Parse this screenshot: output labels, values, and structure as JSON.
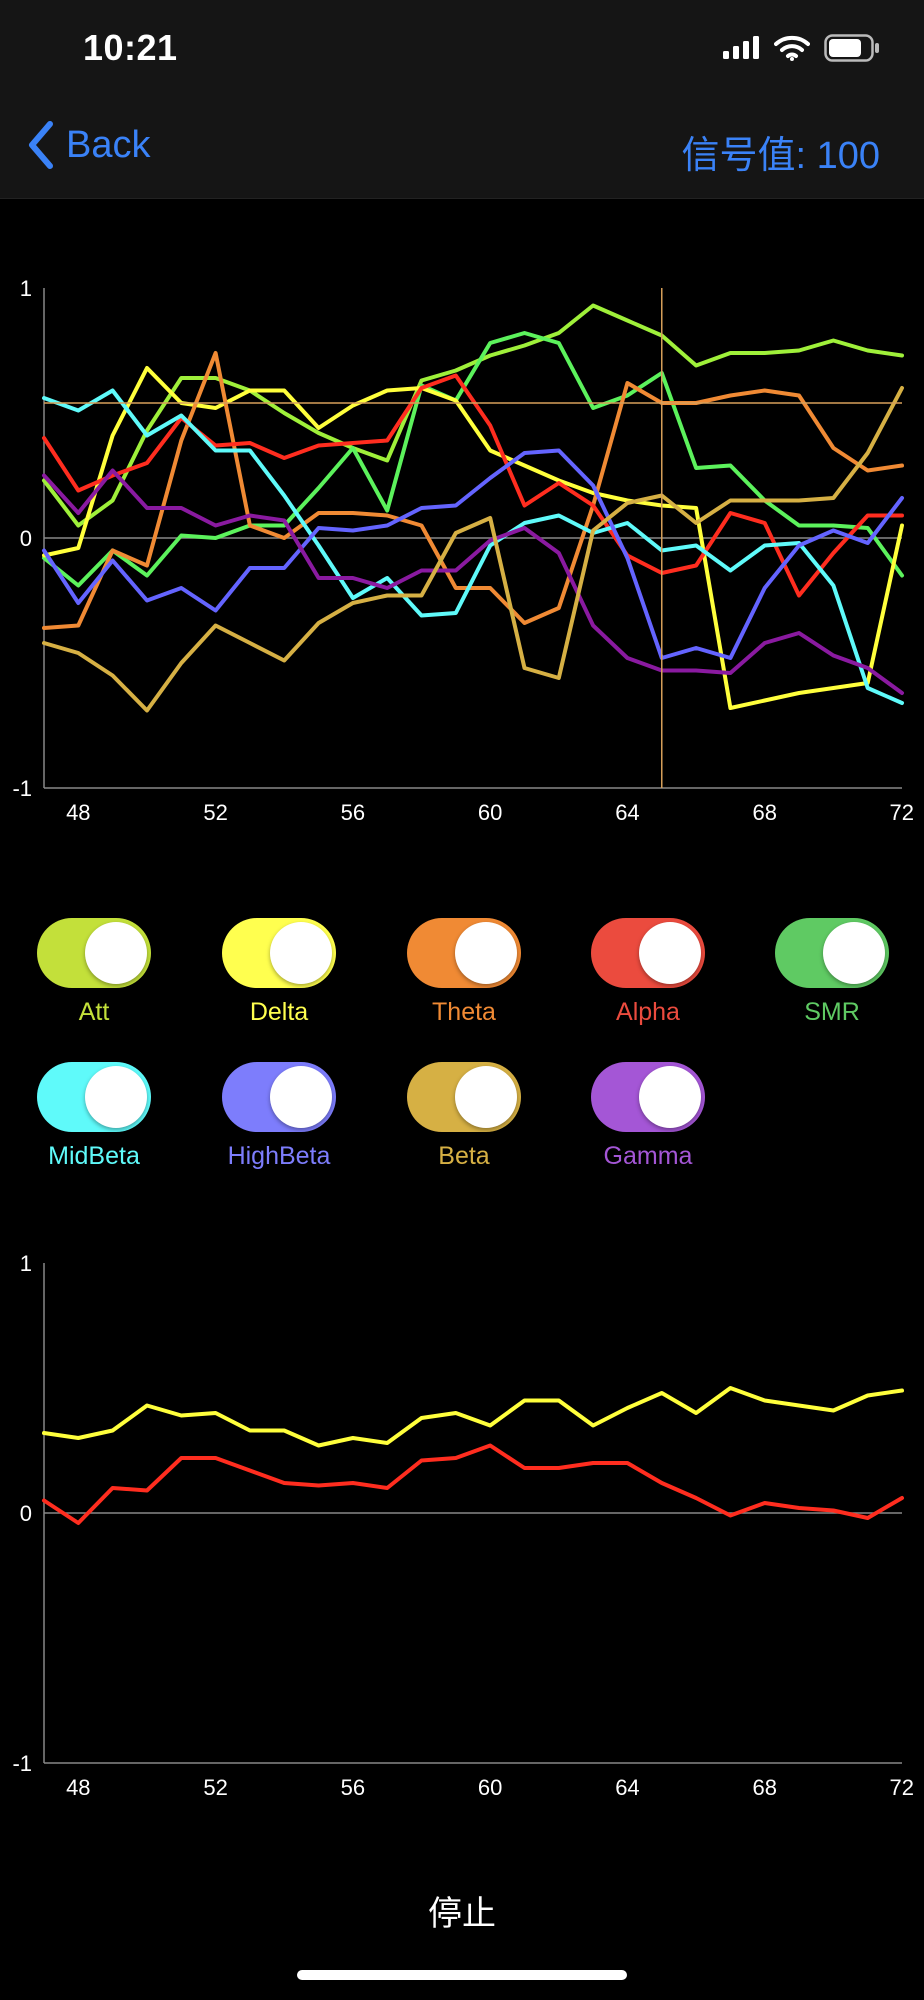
{
  "status_bar": {
    "time": "10:21"
  },
  "nav": {
    "back_label": "Back",
    "signal_text": "信号值: 100"
  },
  "colors": {
    "Att": "#c3e03a",
    "Delta": "#ffff4f",
    "Theta": "#f08a34",
    "Alpha": "#eb4b3e",
    "SMR": "#5fca63",
    "MidBeta": "#5ffafa",
    "HighBeta": "#7d7dfc",
    "Beta": "#d6b044",
    "Gamma": "#a456d6",
    "accent": "#3a82f7"
  },
  "toggles": [
    {
      "name": "Att",
      "on": true
    },
    {
      "name": "Delta",
      "on": true
    },
    {
      "name": "Theta",
      "on": true
    },
    {
      "name": "Alpha",
      "on": true
    },
    {
      "name": "SMR",
      "on": true
    },
    {
      "name": "MidBeta",
      "on": true
    },
    {
      "name": "HighBeta",
      "on": true
    },
    {
      "name": "Beta",
      "on": true
    },
    {
      "name": "Gamma",
      "on": true
    }
  ],
  "chart_data": [
    {
      "type": "line",
      "xlim": [
        47,
        72
      ],
      "ylim": [
        -1,
        1
      ],
      "x_ticks": [
        "48",
        "52",
        "56",
        "60",
        "64",
        "68",
        "72"
      ],
      "y_ticks": [
        "1",
        "0",
        "-1"
      ],
      "crosshair": {
        "x": 65,
        "y": 0.54
      },
      "x": [
        47,
        48,
        49,
        50,
        51,
        52,
        53,
        54,
        55,
        56,
        57,
        58,
        59,
        60,
        61,
        62,
        63,
        64,
        65,
        66,
        67,
        68,
        69,
        70,
        71,
        72
      ],
      "series": [
        {
          "key": "Att",
          "color": "#9ff03a",
          "values": [
            0.23,
            0.05,
            0.15,
            0.43,
            0.64,
            0.64,
            0.59,
            0.5,
            0.42,
            0.36,
            0.31,
            0.63,
            0.67,
            0.73,
            0.77,
            0.82,
            0.93,
            0.87,
            0.81,
            0.69,
            0.74,
            0.74,
            0.75,
            0.79,
            0.75,
            0.73
          ]
        },
        {
          "key": "SMR",
          "color": "#5cf25c",
          "values": [
            -0.08,
            -0.19,
            -0.05,
            -0.15,
            0.01,
            0.0,
            0.05,
            0.05,
            0.2,
            0.36,
            0.11,
            0.61,
            0.55,
            0.78,
            0.82,
            0.78,
            0.52,
            0.57,
            0.66,
            0.28,
            0.29,
            0.15,
            0.05,
            0.05,
            0.04,
            -0.15
          ]
        },
        {
          "key": "Delta",
          "color": "#ffff3c",
          "values": [
            -0.07,
            -0.04,
            0.41,
            0.68,
            0.54,
            0.52,
            0.59,
            0.59,
            0.44,
            0.53,
            0.59,
            0.6,
            0.55,
            0.35,
            0.29,
            0.23,
            0.18,
            0.15,
            0.13,
            0.12,
            -0.68,
            -0.65,
            -0.62,
            -0.6,
            -0.58,
            0.05
          ]
        },
        {
          "key": "Theta",
          "color": "#f08a34",
          "values": [
            -0.36,
            -0.35,
            -0.05,
            -0.11,
            0.39,
            0.74,
            0.05,
            0.0,
            0.1,
            0.1,
            0.09,
            0.05,
            -0.2,
            -0.2,
            -0.34,
            -0.28,
            0.13,
            0.62,
            0.54,
            0.54,
            0.57,
            0.59,
            0.57,
            0.36,
            0.27,
            0.29
          ]
        },
        {
          "key": "Alpha",
          "color": "#ff2d1f",
          "values": [
            0.4,
            0.19,
            0.25,
            0.3,
            0.48,
            0.37,
            0.38,
            0.32,
            0.37,
            0.38,
            0.39,
            0.6,
            0.65,
            0.45,
            0.13,
            0.22,
            0.13,
            -0.07,
            -0.14,
            -0.11,
            0.1,
            0.06,
            -0.23,
            -0.06,
            0.09,
            0.09
          ]
        },
        {
          "key": "MidBeta",
          "color": "#5ffafa",
          "values": [
            0.56,
            0.51,
            0.59,
            0.41,
            0.49,
            0.35,
            0.35,
            0.17,
            -0.03,
            -0.24,
            -0.16,
            -0.31,
            -0.3,
            -0.03,
            0.06,
            0.09,
            0.02,
            0.06,
            -0.05,
            -0.03,
            -0.13,
            -0.03,
            -0.02,
            -0.19,
            -0.6,
            -0.66
          ]
        },
        {
          "key": "HighBeta",
          "color": "#6464ff",
          "values": [
            -0.05,
            -0.26,
            -0.09,
            -0.25,
            -0.2,
            -0.29,
            -0.12,
            -0.12,
            0.04,
            0.03,
            0.05,
            0.12,
            0.13,
            0.24,
            0.34,
            0.35,
            0.21,
            -0.08,
            -0.48,
            -0.44,
            -0.48,
            -0.2,
            -0.03,
            0.03,
            -0.02,
            0.16
          ]
        },
        {
          "key": "Gamma",
          "color": "#8a1aa0",
          "values": [
            0.25,
            0.1,
            0.27,
            0.12,
            0.12,
            0.05,
            0.09,
            0.07,
            -0.16,
            -0.16,
            -0.2,
            -0.13,
            -0.13,
            -0.01,
            0.04,
            -0.06,
            -0.35,
            -0.48,
            -0.53,
            -0.53,
            -0.54,
            -0.42,
            -0.38,
            -0.47,
            -0.52,
            -0.62
          ]
        },
        {
          "key": "Beta",
          "color": "#d6b044",
          "values": [
            -0.42,
            -0.46,
            -0.55,
            -0.69,
            -0.5,
            -0.35,
            -0.42,
            -0.49,
            -0.34,
            -0.26,
            -0.23,
            -0.23,
            0.02,
            0.08,
            -0.52,
            -0.56,
            0.03,
            0.14,
            0.17,
            0.06,
            0.15,
            0.15,
            0.15,
            0.16,
            0.34,
            0.6
          ]
        }
      ]
    },
    {
      "type": "line",
      "xlim": [
        47,
        72
      ],
      "ylim": [
        -1,
        1
      ],
      "x_ticks": [
        "48",
        "52",
        "56",
        "60",
        "64",
        "68",
        "72"
      ],
      "y_ticks": [
        "1",
        "0",
        "-1"
      ],
      "x": [
        47,
        48,
        49,
        50,
        51,
        52,
        53,
        54,
        55,
        56,
        57,
        58,
        59,
        60,
        61,
        62,
        63,
        64,
        65,
        66,
        67,
        68,
        69,
        70,
        71,
        72
      ],
      "series": [
        {
          "key": "yellow",
          "color": "#ffff3c",
          "values": [
            0.32,
            0.3,
            0.33,
            0.43,
            0.39,
            0.4,
            0.33,
            0.33,
            0.27,
            0.3,
            0.28,
            0.38,
            0.4,
            0.35,
            0.45,
            0.45,
            0.35,
            0.42,
            0.48,
            0.4,
            0.5,
            0.45,
            0.43,
            0.41,
            0.47,
            0.49
          ]
        },
        {
          "key": "red",
          "color": "#ff2d1f",
          "values": [
            0.05,
            -0.04,
            0.1,
            0.09,
            0.22,
            0.22,
            0.17,
            0.12,
            0.11,
            0.12,
            0.1,
            0.21,
            0.22,
            0.27,
            0.18,
            0.18,
            0.2,
            0.2,
            0.12,
            0.06,
            -0.01,
            0.04,
            0.02,
            0.01,
            -0.02,
            0.06
          ]
        }
      ]
    }
  ],
  "stop_label": "停止"
}
